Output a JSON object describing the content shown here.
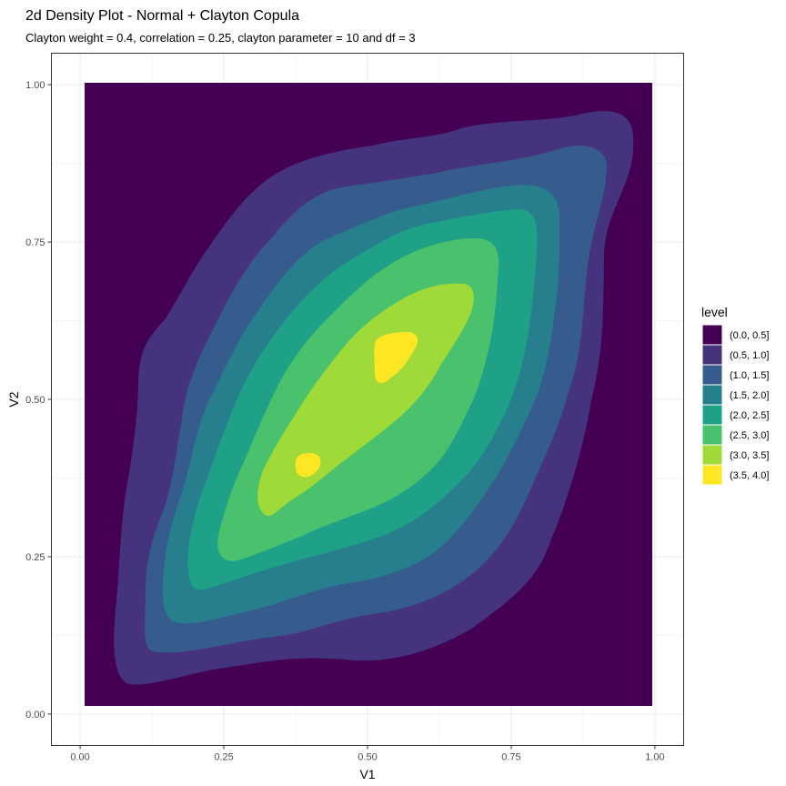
{
  "chart_data": {
    "type": "contour",
    "title": "2d Density Plot - Normal + Clayton Copula",
    "subtitle": "Clayton weight = 0.4, correlation = 0.25, clayton parameter = 10 and df = 3",
    "xlabel": "V1",
    "ylabel": "V2",
    "xlim": [
      -0.05,
      1.05
    ],
    "ylim": [
      -0.05,
      1.05
    ],
    "x_ticks": [
      "0.00",
      "0.25",
      "0.50",
      "0.75",
      "1.00"
    ],
    "y_ticks": [
      "0.00",
      "0.25",
      "0.50",
      "0.75",
      "1.00"
    ],
    "grid": true,
    "legend_title": "level",
    "legend_position": "right",
    "levels": [
      {
        "label": "(0.0, 0.5]",
        "color": "#440154"
      },
      {
        "label": "(0.5, 1.0]",
        "color": "#46337E"
      },
      {
        "label": "(1.0, 1.5]",
        "color": "#365C8D"
      },
      {
        "label": "(1.5, 2.0]",
        "color": "#277F8E"
      },
      {
        "label": "(2.0, 2.5]",
        "color": "#1FA187"
      },
      {
        "label": "(2.5, 3.0]",
        "color": "#4AC16D"
      },
      {
        "label": "(3.0, 3.5]",
        "color": "#A0DA39"
      },
      {
        "label": "(3.5, 4.0]",
        "color": "#FDE725"
      }
    ]
  }
}
